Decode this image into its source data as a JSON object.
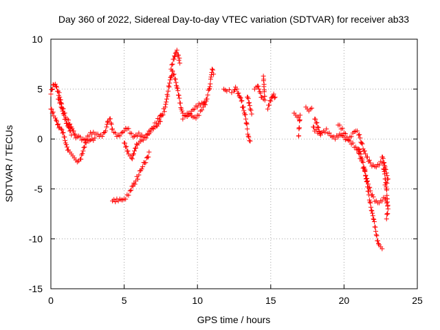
{
  "chart_data": {
    "type": "scatter",
    "title": "Day 360 of 2022, Sidereal Day-to-day VTEC variation (SDTVAR) for receiver ab33",
    "xlabel": "GPS time / hours",
    "ylabel": "SDTVAR / TECUs",
    "xlim": [
      0,
      25
    ],
    "ylim": [
      -15,
      10
    ],
    "xticks": [
      0,
      5,
      10,
      15,
      20,
      25
    ],
    "yticks": [
      -15,
      -10,
      -5,
      0,
      5,
      10
    ],
    "grid": true,
    "marker": "+",
    "color": "#ff0000",
    "segments": [
      {
        "name": "track-a",
        "points": [
          [
            0.0,
            4.5
          ],
          [
            0.1,
            5.0
          ],
          [
            0.2,
            5.4
          ],
          [
            0.3,
            5.5
          ],
          [
            0.4,
            5.2
          ],
          [
            0.5,
            4.8
          ],
          [
            0.6,
            4.2
          ],
          [
            0.7,
            3.6
          ],
          [
            0.8,
            3.0
          ],
          [
            0.9,
            2.6
          ],
          [
            1.0,
            2.2
          ],
          [
            1.1,
            2.0
          ],
          [
            1.2,
            1.9
          ],
          [
            1.3,
            1.5
          ],
          [
            1.4,
            1.2
          ],
          [
            1.5,
            0.8
          ],
          [
            1.6,
            0.4
          ],
          [
            1.7,
            0.1
          ],
          [
            1.8,
            0.2
          ],
          [
            1.9,
            0.3
          ],
          [
            2.0,
            0.2
          ],
          [
            2.2,
            0.0
          ],
          [
            2.4,
            0.0
          ],
          [
            2.6,
            0.3
          ],
          [
            2.8,
            0.5
          ],
          [
            3.0,
            0.5
          ],
          [
            3.2,
            0.5
          ],
          [
            3.4,
            0.4
          ],
          [
            3.6,
            0.6
          ],
          [
            3.8,
            1.2
          ],
          [
            3.9,
            1.8
          ],
          [
            4.0,
            2.0
          ],
          [
            4.1,
            1.6
          ],
          [
            4.2,
            1.0
          ],
          [
            4.4,
            0.6
          ],
          [
            4.6,
            0.4
          ],
          [
            4.8,
            0.6
          ],
          [
            5.0,
            0.8
          ],
          [
            5.2,
            1.0
          ],
          [
            5.4,
            0.6
          ],
          [
            5.6,
            0.2
          ],
          [
            5.8,
            0.4
          ],
          [
            6.0,
            0.6
          ],
          [
            6.2,
            0.4
          ],
          [
            6.4,
            0.2
          ],
          [
            6.6,
            0.4
          ],
          [
            6.8,
            0.7
          ],
          [
            7.0,
            1.0
          ],
          [
            7.2,
            1.3
          ],
          [
            7.4,
            1.8
          ],
          [
            7.6,
            2.4
          ],
          [
            7.8,
            3.2
          ],
          [
            7.9,
            4.0
          ],
          [
            8.0,
            4.8
          ],
          [
            8.1,
            5.6
          ],
          [
            8.2,
            6.2
          ],
          [
            8.3,
            6.8
          ],
          [
            8.4,
            6.5
          ],
          [
            8.5,
            6.0
          ],
          [
            8.6,
            5.2
          ],
          [
            8.7,
            4.4
          ],
          [
            8.8,
            3.6
          ],
          [
            8.9,
            3.0
          ],
          [
            9.0,
            2.6
          ],
          [
            9.2,
            2.4
          ],
          [
            9.4,
            2.6
          ],
          [
            9.6,
            2.8
          ],
          [
            9.8,
            3.0
          ],
          [
            10.0,
            3.2
          ],
          [
            10.2,
            3.4
          ],
          [
            10.4,
            3.6
          ],
          [
            10.6,
            4.0
          ],
          [
            10.8,
            5.0
          ],
          [
            10.9,
            6.0
          ],
          [
            11.0,
            7.0
          ],
          [
            11.1,
            6.5
          ]
        ]
      },
      {
        "name": "track-b",
        "points": [
          [
            0.0,
            3.0
          ],
          [
            0.1,
            2.6
          ],
          [
            0.2,
            2.3
          ],
          [
            0.3,
            2.1
          ],
          [
            0.4,
            1.8
          ],
          [
            0.5,
            1.5
          ],
          [
            0.6,
            1.2
          ],
          [
            0.7,
            1.0
          ],
          [
            0.8,
            0.6
          ],
          [
            0.9,
            0.2
          ],
          [
            1.0,
            -0.4
          ],
          [
            1.1,
            -0.8
          ],
          [
            1.2,
            -1.1
          ],
          [
            1.3,
            -1.3
          ],
          [
            1.4,
            -1.5
          ],
          [
            1.5,
            -1.7
          ],
          [
            1.6,
            -1.9
          ],
          [
            1.7,
            -2.1
          ],
          [
            1.8,
            -2.3
          ],
          [
            1.9,
            -2.2
          ],
          [
            2.0,
            -2.0
          ],
          [
            2.1,
            -1.6
          ],
          [
            2.2,
            -1.2
          ],
          [
            2.3,
            -0.8
          ],
          [
            2.4,
            -0.4
          ],
          [
            2.6,
            -0.2
          ],
          [
            2.8,
            0.0
          ],
          [
            3.0,
            0.1
          ]
        ]
      },
      {
        "name": "track-c",
        "points": [
          [
            0.5,
            4.0
          ],
          [
            0.6,
            3.6
          ],
          [
            0.7,
            3.2
          ],
          [
            0.8,
            2.8
          ],
          [
            0.9,
            2.4
          ],
          [
            1.0,
            2.0
          ],
          [
            1.1,
            1.6
          ],
          [
            1.2,
            1.2
          ],
          [
            1.3,
            0.8
          ],
          [
            1.4,
            0.4
          ]
        ]
      },
      {
        "name": "track-d",
        "points": [
          [
            4.2,
            -6.2
          ],
          [
            4.4,
            -6.3
          ],
          [
            4.6,
            -6.2
          ],
          [
            4.8,
            -6.1
          ],
          [
            5.0,
            -6.0
          ],
          [
            5.2,
            -5.6
          ],
          [
            5.4,
            -5.2
          ],
          [
            5.6,
            -4.7
          ],
          [
            5.8,
            -4.2
          ],
          [
            6.0,
            -3.6
          ],
          [
            6.2,
            -3.0
          ],
          [
            6.4,
            -2.4
          ],
          [
            6.6,
            -1.8
          ],
          [
            6.7,
            -1.3
          ]
        ]
      },
      {
        "name": "track-e",
        "points": [
          [
            5.0,
            -0.4
          ],
          [
            5.1,
            -0.8
          ],
          [
            5.2,
            -1.2
          ],
          [
            5.3,
            -1.5
          ],
          [
            5.4,
            -1.7
          ],
          [
            5.5,
            -1.9
          ],
          [
            5.6,
            -1.6
          ],
          [
            5.7,
            -1.2
          ],
          [
            5.8,
            -0.9
          ],
          [
            5.9,
            -0.6
          ],
          [
            6.0,
            -0.4
          ],
          [
            6.2,
            -0.1
          ],
          [
            6.4,
            0.2
          ],
          [
            6.6,
            0.5
          ],
          [
            6.8,
            0.9
          ],
          [
            7.0,
            1.2
          ],
          [
            7.2,
            1.6
          ],
          [
            7.4,
            2.0
          ],
          [
            7.5,
            2.4
          ]
        ]
      },
      {
        "name": "track-f",
        "points": [
          [
            8.2,
            7.0
          ],
          [
            8.3,
            7.5
          ],
          [
            8.4,
            8.0
          ],
          [
            8.5,
            8.6
          ],
          [
            8.6,
            8.9
          ],
          [
            8.7,
            8.4
          ],
          [
            8.8,
            7.6
          ]
        ]
      },
      {
        "name": "track-g",
        "points": [
          [
            9.0,
            2.0
          ],
          [
            9.2,
            2.3
          ],
          [
            9.4,
            2.4
          ],
          [
            9.6,
            2.3
          ],
          [
            9.8,
            2.2
          ],
          [
            10.0,
            2.4
          ],
          [
            10.2,
            2.8
          ],
          [
            10.4,
            3.2
          ],
          [
            10.6,
            3.8
          ]
        ]
      },
      {
        "name": "track-h",
        "points": [
          [
            11.8,
            5.0
          ],
          [
            11.9,
            4.9
          ],
          [
            12.0,
            4.8
          ],
          [
            12.5,
            4.8
          ],
          [
            12.6,
            5.2
          ],
          [
            12.7,
            5.0
          ],
          [
            12.8,
            4.6
          ],
          [
            12.9,
            4.2
          ],
          [
            13.0,
            3.8
          ],
          [
            13.1,
            3.2
          ],
          [
            13.2,
            2.6
          ],
          [
            13.3,
            2.0
          ],
          [
            13.4,
            1.0
          ],
          [
            13.5,
            0.2
          ],
          [
            13.6,
            -0.2
          ]
        ]
      },
      {
        "name": "track-i",
        "points": [
          [
            13.4,
            4.2
          ],
          [
            13.5,
            3.6
          ],
          [
            13.6,
            3.0
          ],
          [
            13.7,
            2.5
          ]
        ]
      },
      {
        "name": "track-j",
        "points": [
          [
            13.9,
            5.0
          ],
          [
            14.0,
            5.2
          ],
          [
            14.1,
            5.3
          ],
          [
            14.2,
            5.0
          ],
          [
            14.3,
            4.6
          ],
          [
            14.4,
            4.2
          ],
          [
            14.5,
            4.0
          ],
          [
            14.6,
            3.9
          ],
          [
            14.5,
            6.3
          ]
        ]
      },
      {
        "name": "track-k",
        "points": [
          [
            14.8,
            3.0
          ],
          [
            14.9,
            3.4
          ],
          [
            15.0,
            3.8
          ],
          [
            15.1,
            4.2
          ],
          [
            15.2,
            4.5
          ],
          [
            15.3,
            4.2
          ]
        ]
      },
      {
        "name": "track-l",
        "points": [
          [
            16.6,
            2.6
          ],
          [
            16.7,
            2.4
          ],
          [
            16.8,
            2.2
          ],
          [
            16.9,
            2.2
          ],
          [
            17.0,
            2.4
          ],
          [
            16.9,
            0.3
          ]
        ]
      },
      {
        "name": "track-m",
        "points": [
          [
            17.4,
            3.2
          ],
          [
            17.5,
            3.0
          ],
          [
            17.6,
            2.8
          ],
          [
            17.7,
            3.0
          ],
          [
            17.8,
            3.1
          ]
        ]
      },
      {
        "name": "track-n",
        "points": [
          [
            17.9,
            1.2
          ],
          [
            18.0,
            0.8
          ],
          [
            18.2,
            0.6
          ],
          [
            18.4,
            0.6
          ],
          [
            18.6,
            0.8
          ],
          [
            18.8,
            1.0
          ],
          [
            19.0,
            0.6
          ],
          [
            19.2,
            0.2
          ],
          [
            19.4,
            0.0
          ],
          [
            19.6,
            0.2
          ],
          [
            19.8,
            0.4
          ],
          [
            20.0,
            0.2
          ],
          [
            20.2,
            0.0
          ],
          [
            20.4,
            0.2
          ],
          [
            20.6,
            0.6
          ],
          [
            20.8,
            0.8
          ],
          [
            21.0,
            0.4
          ],
          [
            21.2,
            -0.4
          ],
          [
            21.4,
            -1.2
          ],
          [
            21.6,
            -1.8
          ],
          [
            21.8,
            -2.4
          ],
          [
            22.0,
            -2.6
          ],
          [
            22.2,
            -2.8
          ],
          [
            22.4,
            -2.6
          ],
          [
            22.6,
            -2.4
          ],
          [
            22.8,
            -2.8
          ]
        ]
      },
      {
        "name": "track-o",
        "points": [
          [
            18.0,
            2.0
          ],
          [
            18.1,
            1.6
          ],
          [
            18.2,
            1.2
          ],
          [
            18.3,
            0.8
          ],
          [
            18.4,
            0.4
          ]
        ]
      },
      {
        "name": "track-p",
        "points": [
          [
            19.6,
            1.4
          ],
          [
            19.8,
            1.0
          ],
          [
            20.0,
            0.6
          ],
          [
            20.2,
            0.2
          ],
          [
            20.4,
            -0.2
          ],
          [
            20.6,
            -0.4
          ],
          [
            20.8,
            -0.8
          ],
          [
            21.0,
            -1.4
          ],
          [
            21.2,
            -2.2
          ],
          [
            21.4,
            -3.2
          ],
          [
            21.5,
            -4.0
          ],
          [
            21.6,
            -4.8
          ],
          [
            21.7,
            -5.6
          ],
          [
            21.8,
            -6.4
          ],
          [
            21.9,
            -7.2
          ],
          [
            22.0,
            -8.0
          ],
          [
            22.1,
            -8.8
          ],
          [
            22.2,
            -9.6
          ],
          [
            22.3,
            -10.2
          ],
          [
            22.4,
            -10.6
          ],
          [
            22.5,
            -10.8
          ],
          [
            22.6,
            -11.0
          ]
        ]
      },
      {
        "name": "track-q",
        "points": [
          [
            21.0,
            -1.0
          ],
          [
            21.2,
            -2.0
          ],
          [
            21.4,
            -3.0
          ],
          [
            21.6,
            -4.2
          ],
          [
            21.8,
            -5.2
          ],
          [
            22.0,
            -5.8
          ],
          [
            22.2,
            -6.2
          ],
          [
            22.4,
            -6.4
          ],
          [
            22.6,
            -6.2
          ],
          [
            22.8,
            -6.0
          ],
          [
            22.9,
            -6.4
          ]
        ]
      },
      {
        "name": "track-r",
        "points": [
          [
            22.7,
            -3.0
          ],
          [
            22.8,
            -4.0
          ],
          [
            22.9,
            -5.0
          ],
          [
            22.95,
            -6.0
          ],
          [
            23.0,
            -7.0
          ],
          [
            22.9,
            -8.0
          ]
        ]
      },
      {
        "name": "track-s",
        "points": [
          [
            22.6,
            -1.8
          ],
          [
            22.7,
            -2.4
          ],
          [
            22.8,
            -3.0
          ],
          [
            22.9,
            -3.4
          ],
          [
            23.0,
            -4.0
          ],
          [
            22.8,
            -4.6
          ]
        ]
      }
    ]
  }
}
